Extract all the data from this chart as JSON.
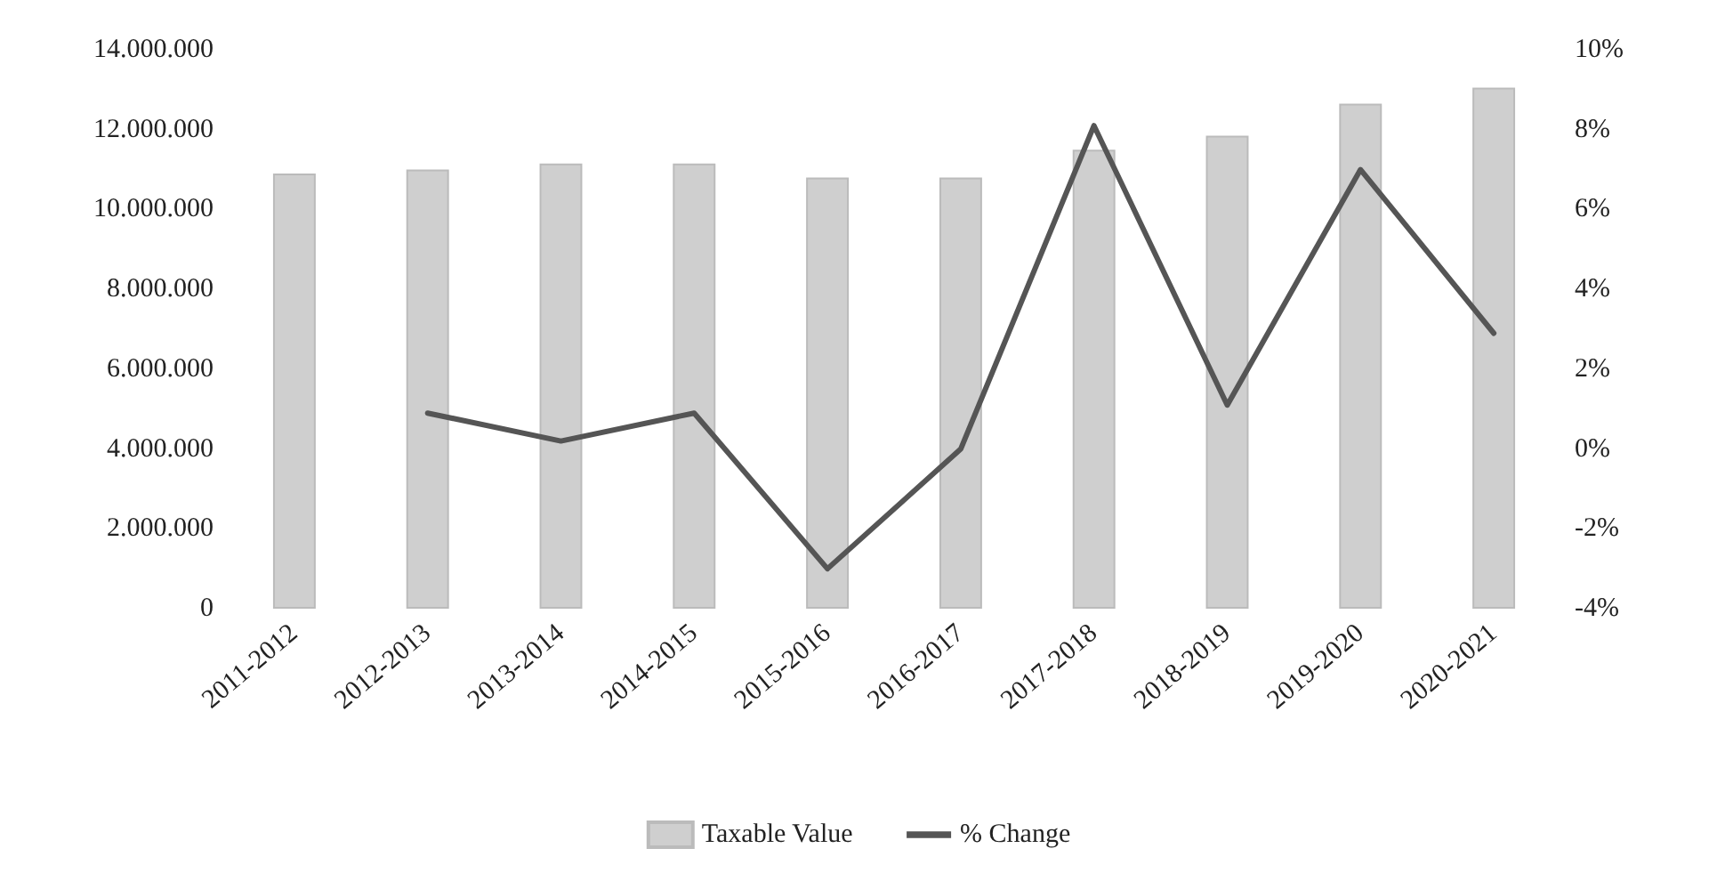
{
  "chart_data": {
    "type": "bar",
    "categories": [
      "2011-2012",
      "2012-2013",
      "2013-2014",
      "2014-2015",
      "2015-2016",
      "2016-2017",
      "2017-2018",
      "2018-2019",
      "2019-2020",
      "2020-2021"
    ],
    "series": [
      {
        "name": "Taxable Value",
        "color": "#cfcfcf",
        "values": [
          10900000,
          11000000,
          11150000,
          11150000,
          10800000,
          10800000,
          11500000,
          11850000,
          12650000,
          13050000
        ]
      },
      {
        "name": "% Change",
        "type": "line",
        "axis": "y2",
        "color": "#555555",
        "values": [
          null,
          0.9,
          0.2,
          0.9,
          -3.0,
          0.0,
          8.1,
          1.1,
          7.0,
          2.9
        ]
      }
    ],
    "ylim": [
      0,
      14000000
    ],
    "yticks": [
      {
        "value": 0,
        "label": "0"
      },
      {
        "value": 2000000,
        "label": "2.000.000"
      },
      {
        "value": 4000000,
        "label": "4.000.000"
      },
      {
        "value": 6000000,
        "label": "6.000.000"
      },
      {
        "value": 8000000,
        "label": "8.000.000"
      },
      {
        "value": 10000000,
        "label": "10.000.000"
      },
      {
        "value": 12000000,
        "label": "12.000.000"
      },
      {
        "value": 14000000,
        "label": "14.000.000"
      }
    ],
    "y2lim": [
      -4,
      10
    ],
    "y2ticks": [
      {
        "value": -4,
        "label": "-4%"
      },
      {
        "value": -2,
        "label": "-2%"
      },
      {
        "value": 0,
        "label": "0%"
      },
      {
        "value": 2,
        "label": "2%"
      },
      {
        "value": 4,
        "label": "4%"
      },
      {
        "value": 6,
        "label": "6%"
      },
      {
        "value": 8,
        "label": "8%"
      },
      {
        "value": 10,
        "label": "10%"
      }
    ],
    "legend": "bottom",
    "marker": "none",
    "line_style": "solid",
    "grid": false
  }
}
